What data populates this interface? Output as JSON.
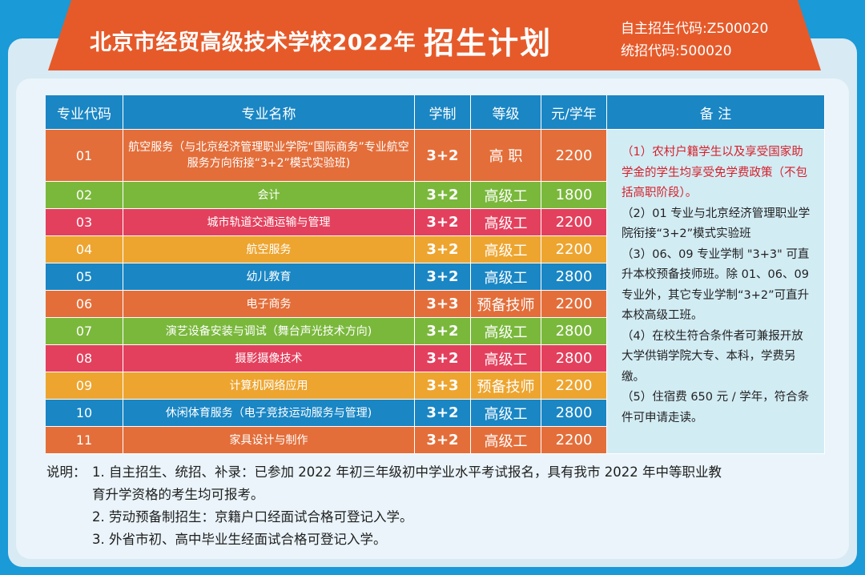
{
  "header": {
    "school_name": "北京市经贸高级技术学校2022年",
    "plan_title": "招生计划",
    "self_code": "自主招生代码:Z500020",
    "unified_code": "统招代码:500020"
  },
  "table": {
    "headers": [
      "专业代码",
      "专业名称",
      "学制",
      "等级",
      "元/学年",
      "备 注"
    ],
    "rows": [
      {
        "code": "01",
        "name": "航空服务（与北京经济管理职业学院“国际商务”专业航空服务方向衔接“3+2”模式实验班)",
        "system": "3+2",
        "level": "高  职",
        "fee": "2200",
        "color": "orange"
      },
      {
        "code": "02",
        "name": "会计",
        "system": "3+2",
        "level": "高级工",
        "fee": "1800",
        "color": "green"
      },
      {
        "code": "03",
        "name": "城市轨道交通运输与管理",
        "system": "3+2",
        "level": "高级工",
        "fee": "2200",
        "color": "pink"
      },
      {
        "code": "04",
        "name": "航空服务",
        "system": "3+2",
        "level": "高级工",
        "fee": "2200",
        "color": "yellow"
      },
      {
        "code": "05",
        "name": "幼儿教育",
        "system": "3+2",
        "level": "高级工",
        "fee": "2800",
        "color": "blue"
      },
      {
        "code": "06",
        "name": "电子商务",
        "system": "3+3",
        "level": "预备技师",
        "fee": "2200",
        "color": "orange"
      },
      {
        "code": "07",
        "name": "演艺设备安装与调试（舞台声光技术方向)",
        "system": "3+2",
        "level": "高级工",
        "fee": "2800",
        "color": "green"
      },
      {
        "code": "08",
        "name": "摄影摄像技术",
        "system": "3+2",
        "level": "高级工",
        "fee": "2800",
        "color": "pink"
      },
      {
        "code": "09",
        "name": "计算机网络应用",
        "system": "3+3",
        "level": "预备技师",
        "fee": "2200",
        "color": "yellow"
      },
      {
        "code": "10",
        "name": "休闲体育服务（电子竞技运动服务与管理)",
        "system": "3+2",
        "level": "高级工",
        "fee": "2800",
        "color": "blue"
      },
      {
        "code": "11",
        "name": "家具设计与制作",
        "system": "3+2",
        "level": "高级工",
        "fee": "2200",
        "color": "orange"
      }
    ],
    "notes": {
      "n1": "（1）农村户籍学生以及享受国家助学金的学生均享受免学费政策（不包括高职阶段）。",
      "n2": "（2）01 专业与北京经济管理职业学院衔接“3+2”模式实验班",
      "n3": "（3）06、09 专业学制 \"3+3\" 可直升本校预备技师班。除 01、06、09 专业外，其它专业学制“3+2”可直升本校高级工班。",
      "n4": "（4）在校生符合条件者可兼报开放大学供销学院大专、本科，学费另缴。",
      "n5": "（5）住宿费 650 元 / 学年，符合条件可申请走读。"
    }
  },
  "footnotes": {
    "label": "说明：",
    "line1a": "1. 自主招生、统招、补录：已参加 2022 年初三年级初中学业水平考试报名，具有我市 2022 年中等职业教",
    "line1b": "育升学资格的考生均可报考。",
    "line2": "2. 劳动预备制招生：京籍户口经面试合格可登记入学。",
    "line3": "3. 外省市初、高中毕业生经面试合格可登记入学。"
  }
}
